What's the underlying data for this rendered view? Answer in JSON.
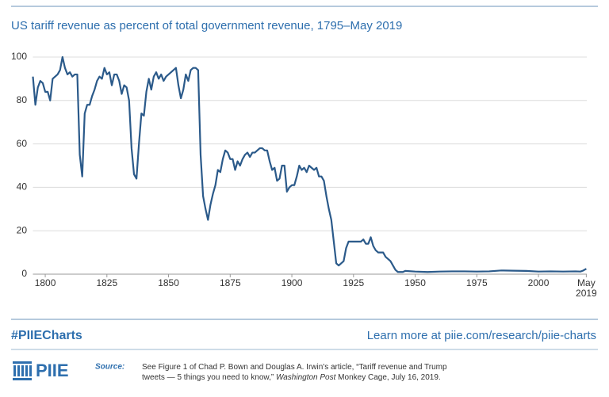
{
  "chart_data": {
    "type": "line",
    "title": "US tariff revenue as percent of total government revenue, 1795–May 2019",
    "x": [
      1795,
      1796,
      1797,
      1798,
      1799,
      1800,
      1801,
      1802,
      1803,
      1804,
      1805,
      1806,
      1807,
      1808,
      1809,
      1810,
      1811,
      1812,
      1813,
      1814,
      1815,
      1816,
      1817,
      1818,
      1819,
      1820,
      1821,
      1822,
      1823,
      1824,
      1825,
      1826,
      1827,
      1828,
      1829,
      1830,
      1831,
      1832,
      1833,
      1834,
      1835,
      1836,
      1837,
      1838,
      1839,
      1840,
      1841,
      1842,
      1843,
      1844,
      1845,
      1846,
      1847,
      1848,
      1849,
      1850,
      1851,
      1852,
      1853,
      1854,
      1855,
      1856,
      1857,
      1858,
      1859,
      1860,
      1861,
      1862,
      1863,
      1864,
      1865,
      1866,
      1867,
      1868,
      1869,
      1870,
      1871,
      1872,
      1873,
      1874,
      1875,
      1876,
      1877,
      1878,
      1879,
      1880,
      1881,
      1882,
      1883,
      1884,
      1885,
      1886,
      1887,
      1888,
      1889,
      1890,
      1891,
      1892,
      1893,
      1894,
      1895,
      1896,
      1897,
      1898,
      1899,
      1900,
      1901,
      1902,
      1903,
      1904,
      1905,
      1906,
      1907,
      1908,
      1909,
      1910,
      1911,
      1912,
      1913,
      1914,
      1915,
      1916,
      1917,
      1918,
      1919,
      1920,
      1921,
      1922,
      1923,
      1924,
      1925,
      1926,
      1927,
      1928,
      1929,
      1930,
      1931,
      1932,
      1933,
      1934,
      1935,
      1936,
      1937,
      1938,
      1939,
      1940,
      1941,
      1942,
      1943,
      1944,
      1945,
      1946,
      1950,
      1955,
      1960,
      1965,
      1970,
      1975,
      1980,
      1985,
      1990,
      1995,
      2000,
      2005,
      2010,
      2015,
      2017,
      2018,
      2019.4
    ],
    "values": [
      91,
      78,
      86,
      89,
      88,
      84,
      84,
      80,
      90,
      91,
      92,
      94,
      100,
      95,
      92,
      93,
      91,
      92,
      92,
      55,
      45,
      74,
      78,
      78,
      82,
      85,
      89,
      91,
      90,
      95,
      92,
      93,
      87,
      92,
      92,
      89,
      83,
      87,
      86,
      80,
      58,
      46,
      44,
      60,
      74,
      73,
      84,
      90,
      85,
      91,
      93,
      90,
      92,
      89,
      91,
      92,
      93,
      94,
      95,
      87,
      81,
      85,
      92,
      89,
      94,
      95,
      95,
      94,
      55,
      36,
      30,
      25,
      32,
      37,
      41,
      48,
      47,
      53,
      57,
      56,
      53,
      53,
      48,
      52,
      50,
      53,
      55,
      56,
      54,
      56,
      56,
      57,
      58,
      58,
      57,
      57,
      52,
      48,
      49,
      43,
      44,
      50,
      50,
      38,
      40,
      41,
      41,
      45,
      50,
      48,
      49,
      47,
      50,
      49,
      48,
      49,
      45,
      45,
      43,
      36,
      30,
      25,
      15,
      5,
      4,
      5,
      6,
      12,
      15,
      15,
      15,
      15,
      15,
      15,
      16,
      14,
      14,
      17,
      13,
      11,
      10,
      10,
      10,
      8,
      7,
      6,
      4,
      2,
      1,
      1,
      1,
      1.5,
      1.2,
      1,
      1.2,
      1.3,
      1.3,
      1.2,
      1.3,
      1.7,
      1.6,
      1.5,
      1.2,
      1.3,
      1.2,
      1.3,
      1.2,
      1.6,
      2.5
    ],
    "color": "#2b5a8a",
    "xlim": [
      1795,
      2019.6
    ],
    "xticks": [
      1800,
      1825,
      1850,
      1875,
      1900,
      1925,
      1950,
      1975,
      2000,
      {
        "value": 2019.4,
        "label": "May 2019"
      }
    ],
    "ylim": [
      0,
      100
    ],
    "yticks": [
      0,
      20,
      40,
      60,
      80,
      100
    ],
    "grid": true
  },
  "footer": {
    "hashtag": "#PIIECharts",
    "link": "Learn more at piie.com/research/piie-charts",
    "logo": "PIIE",
    "source_label": "Source:",
    "source_parts": [
      "See Figure 1 of Chad P. Bown and Douglas A. Irwin's article, “Tariff revenue and Trump tweets — 5 things you need to know,” ",
      "Washington Post",
      " Monkey Cage, July 16, 2019."
    ]
  }
}
